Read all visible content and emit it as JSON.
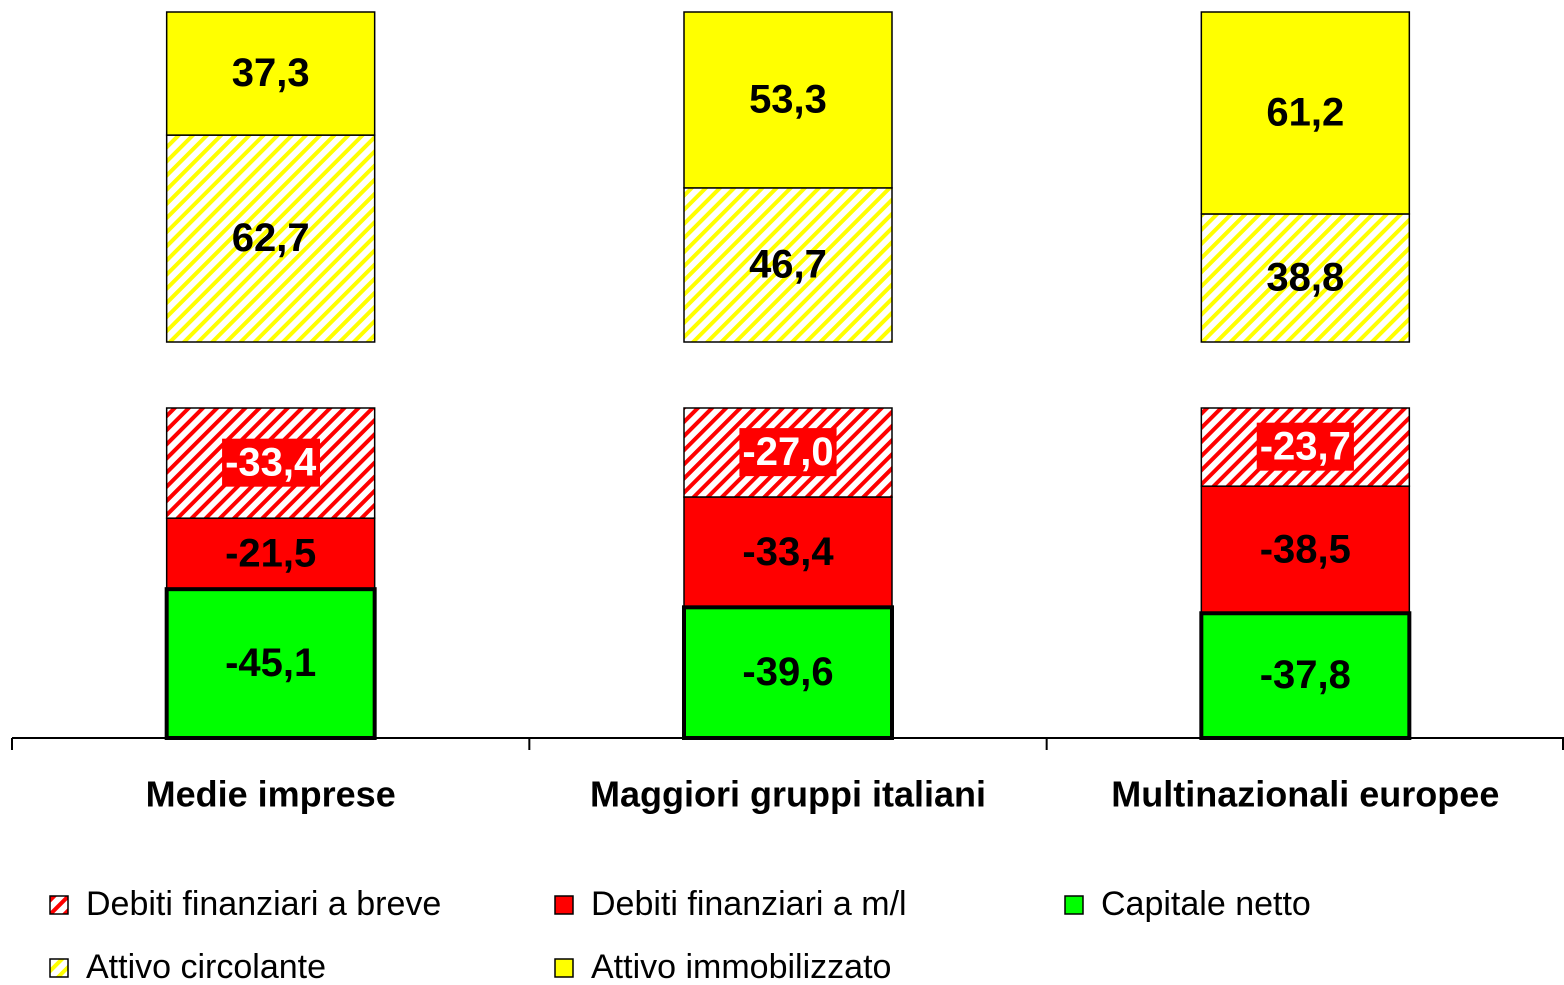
{
  "chart_data": {
    "type": "bar",
    "stacked": true,
    "categories": [
      "Medie imprese",
      "Maggiori gruppi italiani",
      "Multinazionali europee"
    ],
    "ylim": [
      -100,
      100
    ],
    "series": [
      {
        "name": "Debiti finanziari a breve",
        "color": "#ff0000",
        "pattern": "hatched",
        "label_color": "#ffffff",
        "label_background": "#ff0000",
        "values": [
          -33.4,
          -27.0,
          -23.7
        ],
        "value_labels": [
          "-33,4",
          "-27,0",
          "-23,7"
        ]
      },
      {
        "name": "Debiti finanziari a m/l",
        "color": "#ff0000",
        "values": [
          -21.5,
          -33.4,
          -38.5
        ],
        "value_labels": [
          "-21,5",
          "-33,4",
          "-38,5"
        ]
      },
      {
        "name": "Capitale netto",
        "color": "#00ff00",
        "border": "#000000",
        "values": [
          -45.1,
          -39.6,
          -37.8
        ],
        "value_labels": [
          "-45,1",
          "-39,6",
          "-37,8"
        ]
      },
      {
        "name": "Attivo circolante",
        "color": "#ffff00",
        "pattern": "hatched",
        "values": [
          62.7,
          46.7,
          38.8
        ],
        "value_labels": [
          "62,7",
          "46,7",
          "38,8"
        ]
      },
      {
        "name": "Attivo immobilizzato",
        "color": "#ffff00",
        "values": [
          37.3,
          53.3,
          61.2
        ],
        "value_labels": [
          "37,3",
          "53,3",
          "61,2"
        ]
      }
    ]
  }
}
